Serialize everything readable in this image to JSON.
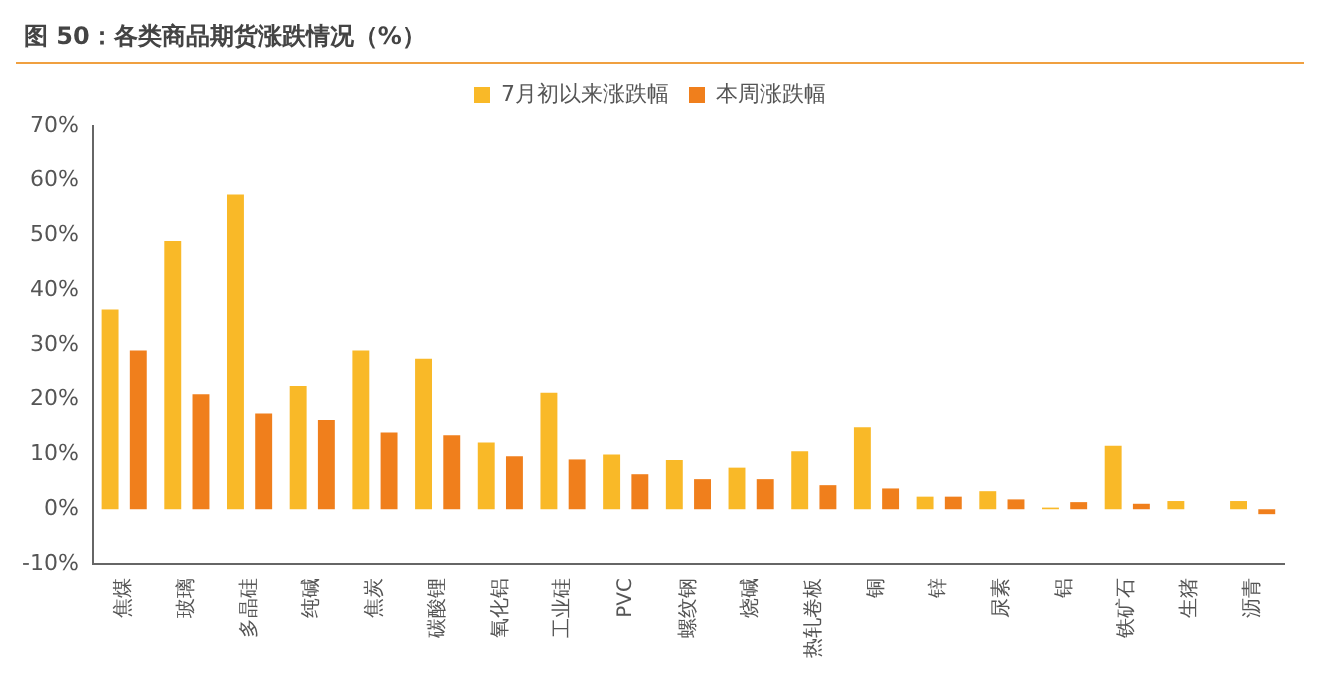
{
  "chart_data": {
    "type": "bar",
    "title": "图 50：各类商品期货涨跌情况（%）",
    "categories": [
      "焦煤",
      "玻璃",
      "多晶硅",
      "纯碱",
      "焦炭",
      "碳酸锂",
      "氧化铝",
      "工业硅",
      "PVC",
      "螺纹钢",
      "烧碱",
      "热轧卷板",
      "铜",
      "锌",
      "尿素",
      "铝",
      "铁矿石",
      "生猪",
      "沥青"
    ],
    "series": [
      {
        "name": "7月初以来涨跌幅",
        "color": "#f9b928",
        "values": [
          36.5,
          49,
          57.5,
          22.5,
          29,
          27.5,
          12.2,
          21.3,
          10,
          9,
          7.6,
          10.6,
          15,
          2.3,
          3.3,
          0.3,
          11.6,
          1.5,
          1.5
        ]
      },
      {
        "name": "本周涨跌幅",
        "color": "#f07f1c",
        "values": [
          29,
          21,
          17.5,
          16.3,
          14,
          13.5,
          9.7,
          9.1,
          6.4,
          5.5,
          5.5,
          4.4,
          3.8,
          2.3,
          1.8,
          1.3,
          1,
          0,
          -0.9
        ]
      }
    ],
    "ylim": [
      -10,
      70
    ],
    "yticks": [
      {
        "value": -10,
        "label": "-10%"
      },
      {
        "value": 0,
        "label": "0%"
      },
      {
        "value": 10,
        "label": "10%"
      },
      {
        "value": 20,
        "label": "20%"
      },
      {
        "value": 30,
        "label": "30%"
      },
      {
        "value": 40,
        "label": "40%"
      },
      {
        "value": 50,
        "label": "50%"
      },
      {
        "value": 60,
        "label": "60%"
      },
      {
        "value": 70,
        "label": "70%"
      }
    ],
    "grid": false,
    "legend": "top"
  }
}
